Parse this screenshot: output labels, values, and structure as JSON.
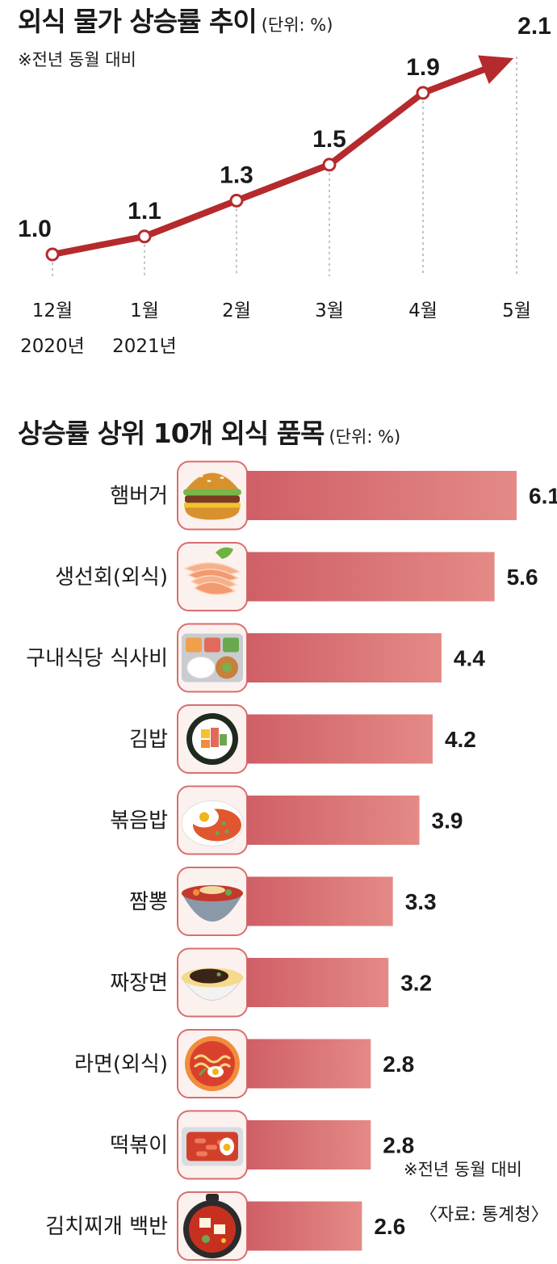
{
  "chart_data": [
    {
      "type": "line",
      "title": "외식 물가 상승률 추이",
      "unit": "(단위: %)",
      "note": "※전년 동월 대비",
      "categories": [
        "12월",
        "1월",
        "2월",
        "3월",
        "4월",
        "5월"
      ],
      "year_labels": [
        "2020년",
        "2021년",
        "",
        "",
        "",
        ""
      ],
      "values": [
        1.0,
        1.1,
        1.3,
        1.5,
        1.9,
        2.1
      ],
      "value_labels": [
        "1.0",
        "1.1",
        "1.3",
        "1.5",
        "1.9",
        "2.1"
      ],
      "ylim": [
        1.0,
        2.1
      ],
      "grid": false,
      "colors": {
        "line": "#b52a2c",
        "marker_fill": "#ffffff"
      }
    },
    {
      "type": "bar",
      "orientation": "horizontal",
      "title": "상승률 상위 10개 외식 품목",
      "unit": "(단위: %)",
      "categories": [
        "햄버거",
        "생선회(외식)",
        "구내식당 식사비",
        "김밥",
        "볶음밥",
        "짬뽕",
        "짜장면",
        "라면(외식)",
        "떡볶이",
        "김치찌개 백반"
      ],
      "icons": [
        "hamburger-icon",
        "sashimi-icon",
        "cafeteria-tray-icon",
        "gimbap-icon",
        "fried-rice-icon",
        "jjamppong-icon",
        "jjajangmyeon-icon",
        "ramen-icon",
        "tteokbokki-icon",
        "kimchi-stew-icon"
      ],
      "values": [
        6.1,
        5.6,
        4.4,
        4.2,
        3.9,
        3.3,
        3.2,
        2.8,
        2.8,
        2.6
      ],
      "value_labels": [
        "6.1",
        "5.6",
        "4.4",
        "4.2",
        "3.9",
        "3.3",
        "3.2",
        "2.8",
        "2.8",
        "2.6"
      ],
      "xlim": [
        0,
        6.1
      ],
      "colors": {
        "bar_start": "#cf5f66",
        "bar_end": "#e48a86",
        "icon_border": "#d96e6e",
        "icon_bg": "#fbf1ee"
      }
    }
  ],
  "footer": {
    "note": "※전년 동월 대비",
    "source": "〈자료: 통계청〉"
  }
}
